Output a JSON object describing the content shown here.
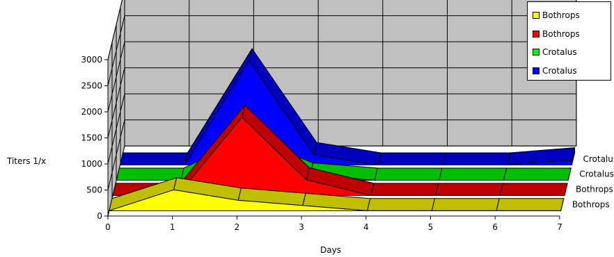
{
  "chart_data": {
    "type": "area",
    "title": "",
    "xlabel": "Days",
    "ylabel": "Titers 1/x",
    "x": [
      0,
      1,
      2,
      3,
      4,
      5,
      6,
      7
    ],
    "x_ticks": [
      "0",
      "1",
      "2",
      "3",
      "4",
      "5",
      "6",
      "7"
    ],
    "ylim": [
      0,
      3000
    ],
    "y_ticks": [
      "0",
      "500",
      "1000",
      "1500",
      "2000",
      "2500",
      "3000"
    ],
    "grid": true,
    "legend_position": "top-right",
    "series": [
      {
        "name": "Bothrops",
        "color": "#ffff00",
        "values": [
          0,
          400,
          200,
          100,
          0,
          0,
          0,
          0
        ]
      },
      {
        "name": "Bothrops",
        "color": "#ff0000",
        "values": [
          0,
          0,
          1500,
          300,
          0,
          0,
          0,
          0
        ]
      },
      {
        "name": "Crotalus",
        "color": "#00ff00",
        "values": [
          0,
          0,
          600,
          100,
          0,
          0,
          0,
          0
        ]
      },
      {
        "name": "Crotalus",
        "color": "#0000ff",
        "values": [
          0,
          0,
          2000,
          200,
          0,
          0,
          0,
          100
        ]
      }
    ],
    "series_axis_labels": [
      "Bothrops",
      "Bothrops",
      "Crotalus",
      "Crotalus"
    ]
  }
}
